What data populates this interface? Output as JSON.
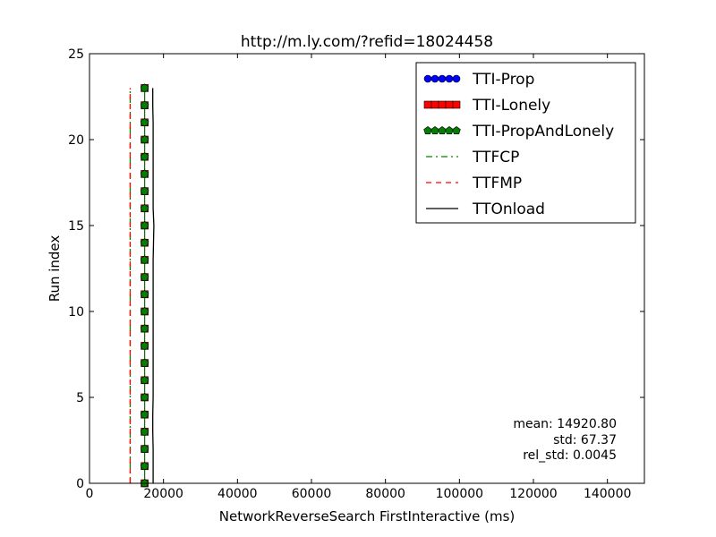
{
  "chart_data": {
    "type": "line",
    "title": "http://m.ly.com/?refid=18024458",
    "xlabel": "NetworkReverseSearch FirstInteractive (ms)",
    "ylabel": "Run index",
    "xlim": [
      0,
      150000
    ],
    "ylim": [
      0,
      25
    ],
    "x_ticks": [
      0,
      20000,
      40000,
      60000,
      80000,
      100000,
      120000,
      140000
    ],
    "x_tick_labels": [
      "0",
      "20000",
      "40000",
      "60000",
      "80000",
      "100000",
      "120000",
      "140000"
    ],
    "y_ticks": [
      0,
      5,
      10,
      15,
      20,
      25
    ],
    "y_tick_labels": [
      "0",
      "5",
      "10",
      "15",
      "20",
      "25"
    ],
    "grid": false,
    "legend_position": "top-right",
    "series": [
      {
        "name": "TTI-Prop",
        "style": "marker-circle",
        "color": "#0000ff",
        "x": [
          14900,
          14900,
          14900,
          14900,
          14900,
          14900,
          14900,
          14900,
          14900,
          14900,
          14900,
          14900,
          14900,
          14900,
          14900,
          14900,
          14900,
          14900,
          14900,
          14900,
          14900,
          14900,
          14900,
          14900
        ],
        "y": [
          0,
          1,
          2,
          3,
          4,
          5,
          6,
          7,
          8,
          9,
          10,
          11,
          12,
          13,
          14,
          15,
          16,
          17,
          18,
          19,
          20,
          21,
          22,
          23
        ]
      },
      {
        "name": "TTI-Lonely",
        "style": "marker-square",
        "color": "#ff0000",
        "x": [
          14900,
          14900,
          14900,
          14900,
          14900,
          14900,
          14900,
          14900,
          14900,
          14900,
          14900,
          14900,
          14900,
          14900,
          14900,
          14900,
          14900,
          14900,
          14900,
          14900,
          14900,
          14900,
          14900,
          14900
        ],
        "y": [
          0,
          1,
          2,
          3,
          4,
          5,
          6,
          7,
          8,
          9,
          10,
          11,
          12,
          13,
          14,
          15,
          16,
          17,
          18,
          19,
          20,
          21,
          22,
          23
        ]
      },
      {
        "name": "TTI-PropAndLonely",
        "style": "marker-pentagon",
        "color": "#007f00",
        "x": [
          14900,
          14900,
          14900,
          14900,
          14900,
          14900,
          14900,
          14900,
          14900,
          14900,
          14900,
          14900,
          14900,
          14900,
          14900,
          14900,
          14900,
          14900,
          14900,
          14900,
          14900,
          14900,
          14900,
          14900
        ],
        "y": [
          0,
          1,
          2,
          3,
          4,
          5,
          6,
          7,
          8,
          9,
          10,
          11,
          12,
          13,
          14,
          15,
          16,
          17,
          18,
          19,
          20,
          21,
          22,
          23
        ]
      },
      {
        "name": "TTFCP",
        "style": "dashdot",
        "color": "#008000",
        "x": [
          11000,
          11000,
          11000,
          11000,
          11000,
          11000,
          11000,
          11000,
          11000,
          11000,
          11000,
          11000,
          11000,
          11000,
          11000,
          11000,
          11000,
          11000,
          11000,
          11000,
          11000,
          11000,
          11000,
          11000
        ],
        "y": [
          0,
          1,
          2,
          3,
          4,
          5,
          6,
          7,
          8,
          9,
          10,
          11,
          12,
          13,
          14,
          15,
          16,
          17,
          18,
          19,
          20,
          21,
          22,
          23
        ]
      },
      {
        "name": "TTFMP",
        "style": "dashed",
        "color": "#ff0000",
        "x": [
          11000,
          11000,
          11000,
          11000,
          11000,
          11000,
          11000,
          11000,
          11000,
          11000,
          11000,
          11000,
          11000,
          11000,
          11000,
          11000,
          11000,
          11000,
          11000,
          11000,
          11000,
          11000,
          11000,
          11000
        ],
        "y": [
          0,
          1,
          2,
          3,
          4,
          5,
          6,
          7,
          8,
          9,
          10,
          11,
          12,
          13,
          14,
          15,
          16,
          17,
          18,
          19,
          20,
          21,
          22,
          23
        ]
      },
      {
        "name": "TTOnload",
        "style": "solid",
        "color": "#000000",
        "x": [
          17200,
          17200,
          17200,
          17100,
          17100,
          17200,
          17200,
          17200,
          17200,
          17200,
          17200,
          17200,
          17200,
          17200,
          17300,
          17400,
          17200,
          17200,
          17200,
          17200,
          17200,
          17200,
          17100,
          17100
        ],
        "y": [
          0,
          1,
          2,
          3,
          4,
          5,
          6,
          7,
          8,
          9,
          10,
          11,
          12,
          13,
          14,
          15,
          16,
          17,
          18,
          19,
          20,
          21,
          22,
          23
        ]
      }
    ],
    "annotations": [
      "mean: 14920.80",
      "std: 67.37",
      "rel_std: 0.0045"
    ]
  }
}
